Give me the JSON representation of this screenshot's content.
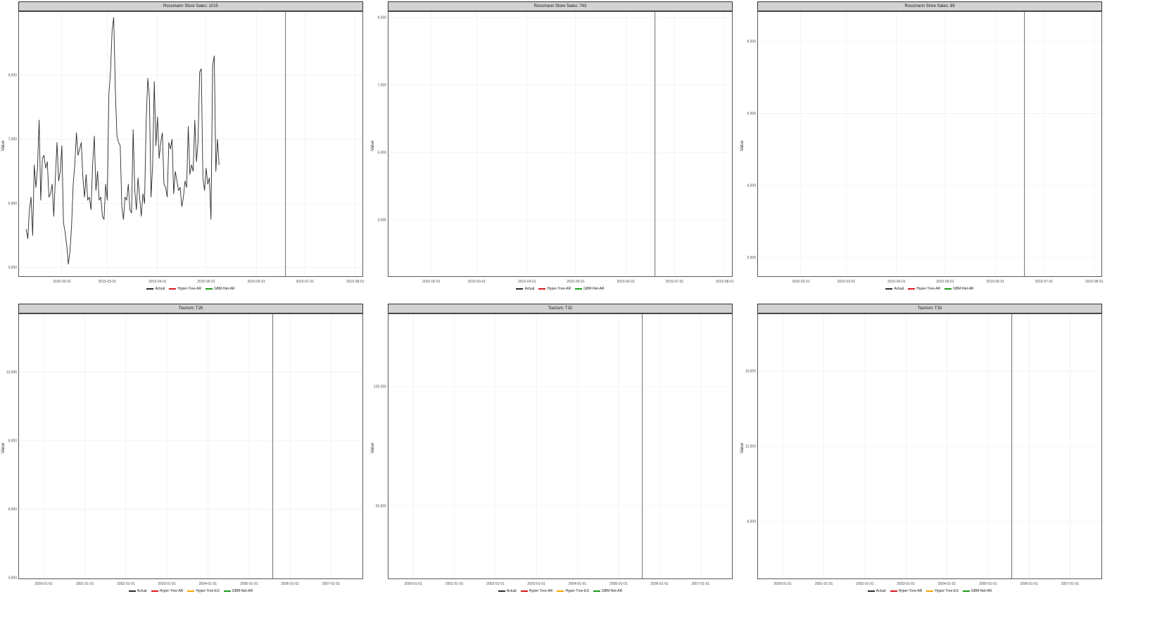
{
  "colors": {
    "Actual": "#2b2b2b",
    "Hyper-Tree-AR": "#d7191c",
    "Hyper-Tree-ES": "#f5a300",
    "GBM-Net-AR": "#1a9a1a"
  },
  "chart_data": [
    {
      "type": "line",
      "title": "Rossmann Store Sales: 1015",
      "xlabel": "",
      "ylabel": "Value",
      "x_ticks": [
        "2015-02-01",
        "2015-03-01",
        "2015-04-01",
        "2015-05-01",
        "2015-06-01",
        "2015-07-01",
        "2015-08-01"
      ],
      "y_ticks": [
        3000,
        5000,
        7000,
        9000
      ],
      "y_tick_labels": [
        "3,000",
        "5,000",
        "7,000",
        "9,000"
      ],
      "xlim": [
        "2015-01-06",
        "2015-08-05"
      ],
      "ylim": [
        2750,
        10950
      ],
      "split_date": "2015-06-19",
      "legend": [
        "Actual",
        "Hyper-Tree-AR",
        "GBM-Net-AR"
      ],
      "legend_position": "bottom",
      "grid": true,
      "series": [
        {
          "name": "Actual",
          "x_start": "2015-01-10",
          "step_days": 1,
          "values": [
            4200,
            3900,
            4800,
            5200,
            4000,
            6200,
            5500,
            6100,
            7600,
            5100,
            6400,
            6500,
            6100,
            6300,
            5200,
            5300,
            5600,
            4600,
            5800,
            6900,
            5700,
            6000,
            6800,
            4400,
            4100,
            3700,
            3100,
            3500,
            4300,
            5600,
            6200,
            7200,
            6500,
            6700,
            6900,
            5800,
            5200,
            5900,
            5100,
            5200,
            4800,
            6200,
            7100,
            5400,
            6000,
            5100,
            5200,
            4600,
            4500,
            5600,
            5100,
            8400,
            9100,
            10400,
            10800,
            8500,
            7100,
            6900,
            6800,
            4900,
            4500,
            5200,
            5100,
            5600,
            4800,
            4700,
            7300,
            5400,
            4800,
            5800,
            5200,
            4600,
            5300,
            5000,
            7600,
            8900,
            8300,
            5200,
            6200,
            8800,
            6800,
            7700,
            6400,
            6900,
            7200,
            5600,
            5500,
            5200,
            6900,
            6700,
            7000,
            5300,
            6000,
            5700,
            5400,
            5500,
            4900,
            5200,
            5700,
            5500,
            7400,
            5900,
            6200,
            6000,
            7600,
            6300,
            6900,
            9100,
            9200,
            5800,
            5400,
            6100,
            5600,
            5800,
            4500,
            9300,
            9600,
            6000,
            7000,
            6200
          ],
          "values_note": "approximate daily trace"
        }
      ]
    },
    {
      "type": "line",
      "title": "Rossmann Store Sales: 743",
      "xlabel": "",
      "ylabel": "Value",
      "x_ticks": [
        "2015-02-01",
        "2015-03-01",
        "2015-04-01",
        "2015-05-01",
        "2015-06-01",
        "2015-07-01",
        "2015-08-01"
      ],
      "y_ticks": [
        3000,
        5000,
        7000,
        9000
      ],
      "y_tick_labels": [
        "3,000",
        "5,000",
        "7,000",
        "9,000"
      ],
      "xlim": [
        "2015-01-06",
        "2015-08-05"
      ],
      "ylim": [
        1350,
        9150
      ],
      "split_date": "2015-06-19",
      "legend": [
        "Actual",
        "Hyper-Tree-AR",
        "GBM-Net-AR"
      ],
      "legend_position": "bottom",
      "grid": true,
      "series": []
    },
    {
      "type": "line",
      "title": "Rossmann Store Sales: 85",
      "xlabel": "",
      "ylabel": "Value",
      "x_ticks": [
        "2015-02-01",
        "2015-03-01",
        "2015-04-01",
        "2015-05-01",
        "2015-06-01",
        "2015-07-01",
        "2015-08-01"
      ],
      "y_ticks": [
        2000,
        4000,
        6000,
        8000
      ],
      "y_tick_labels": [
        "2,000",
        "4,000",
        "6,000",
        "8,000"
      ],
      "xlim": [
        "2015-01-06",
        "2015-08-05"
      ],
      "ylim": [
        1500,
        8800
      ],
      "split_date": "2015-06-19",
      "legend": [
        "Actual",
        "Hyper-Tree-AR",
        "GBM-Net-AR"
      ],
      "legend_position": "bottom",
      "grid": true,
      "series": []
    },
    {
      "type": "line",
      "title": "Tourism: T26",
      "xlabel": "",
      "ylabel": "Value",
      "x_ticks": [
        "2000-01-01",
        "2001-01-01",
        "2002-01-01",
        "2003-01-01",
        "2004-01-01",
        "2005-01-01",
        "2006-01-01",
        "2007-01-01"
      ],
      "y_ticks": [
        3000,
        6000,
        9000,
        12000
      ],
      "y_tick_labels": [
        "3,000",
        "6,000",
        "9,000",
        "12,000"
      ],
      "xlim": [
        "1999-06-01",
        "2007-10-01"
      ],
      "ylim": [
        3000,
        14500
      ],
      "split_date": "2005-08-01",
      "legend": [
        "Actual",
        "Hyper-Tree-AR",
        "Hyper-Tree-ES",
        "GBM-Net-AR"
      ],
      "legend_position": "bottom",
      "grid": true,
      "series": []
    },
    {
      "type": "line",
      "title": "Tourism: T32",
      "xlabel": "",
      "ylabel": "Value",
      "x_ticks": [
        "2000-01-01",
        "2001-01-01",
        "2002-01-01",
        "2003-01-01",
        "2004-01-01",
        "2005-01-01",
        "2006-01-01",
        "2007-01-01"
      ],
      "y_ticks": [
        50000,
        100000
      ],
      "y_tick_labels": [
        "50,000",
        "100,000"
      ],
      "xlim": [
        "1999-06-01",
        "2007-10-01"
      ],
      "ylim": [
        20000,
        130000
      ],
      "split_date": "2005-08-01",
      "legend": [
        "Actual",
        "Hyper-Tree-AR",
        "Hyper-Tree-ES",
        "GBM-Net-AR"
      ],
      "legend_position": "bottom",
      "grid": true,
      "series": []
    },
    {
      "type": "line",
      "title": "Tourism: T33",
      "xlabel": "",
      "ylabel": "Value",
      "x_ticks": [
        "2000-01-01",
        "2001-01-01",
        "2002-01-01",
        "2003-01-01",
        "2004-01-01",
        "2005-01-01",
        "2006-01-01",
        "2007-01-01"
      ],
      "y_ticks": [
        8000,
        12000,
        16000
      ],
      "y_tick_labels": [
        "8,000",
        "12,000",
        "16,000"
      ],
      "xlim": [
        "1999-06-01",
        "2007-10-01"
      ],
      "ylim": [
        5000,
        19000
      ],
      "split_date": "2005-08-01",
      "legend": [
        "Actual",
        "Hyper-Tree-AR",
        "Hyper-Tree-ES",
        "GBM-Net-AR"
      ],
      "legend_position": "bottom",
      "grid": true,
      "series": []
    }
  ]
}
